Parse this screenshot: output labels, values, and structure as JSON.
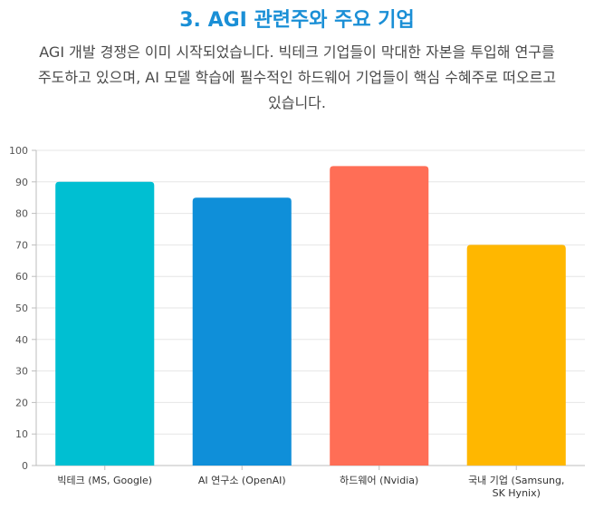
{
  "header": {
    "title": "3. AGI 관련주와 주요 기업",
    "description_lines": [
      "AGI 개발 경쟁은 이미 시작되었습니다. 빅테크 기업들이 막대한 자본을 투입해 연구를",
      "주도하고 있으며, AI 모델 학습에 필수적인 하드웨어 기업들이 핵심 수혜주로 떠오르고",
      "있습니다."
    ]
  },
  "chart_data": {
    "type": "bar",
    "categories": [
      [
        "빅테크 (MS, Google)"
      ],
      [
        "AI 연구소 (OpenAI)"
      ],
      [
        "하드웨어 (Nvidia)"
      ],
      [
        "국내 기업 (Samsung,",
        "SK Hynix)"
      ]
    ],
    "values": [
      90,
      85,
      95,
      70
    ],
    "colors": [
      "#00bfd2",
      "#0f8fd9",
      "#ff6e56",
      "#ffb700"
    ],
    "ylim": [
      0,
      100
    ],
    "yticks": [
      0,
      10,
      20,
      30,
      40,
      50,
      60,
      70,
      80,
      90,
      100
    ],
    "grid": true,
    "title": "",
    "xlabel": "",
    "ylabel": ""
  }
}
